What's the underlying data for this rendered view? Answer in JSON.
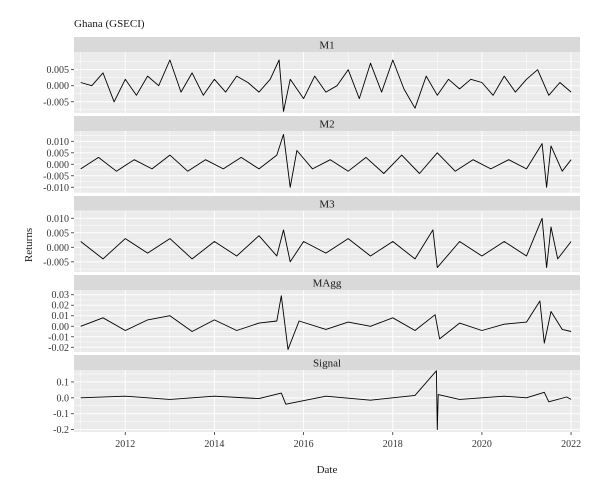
{
  "chart_data": {
    "type": "line",
    "title": "Ghana (GSECI)",
    "xlabel": "Date",
    "ylabel": "Returns",
    "xlim": [
      2010.85,
      2022.2
    ],
    "x_ticks": [
      2012,
      2014,
      2016,
      2018,
      2020,
      2022
    ],
    "grid": true,
    "legend": "none",
    "colors": {
      "panel_bg": "#ebebeb",
      "strip_bg": "#d9d9d9",
      "grid": "#ffffff",
      "line": "#000000"
    },
    "panels": [
      {
        "name": "M1",
        "ylim": [
          -0.0085,
          0.0105
        ],
        "y_ticks": [
          0.005,
          0.0,
          -0.005
        ],
        "y_tick_labels": [
          "0.005",
          "0.000",
          "-0.005"
        ],
        "x": [
          2011.0,
          2011.25,
          2011.5,
          2011.75,
          2012.0,
          2012.25,
          2012.5,
          2012.75,
          2013.0,
          2013.25,
          2013.5,
          2013.75,
          2014.0,
          2014.25,
          2014.5,
          2014.75,
          2015.0,
          2015.25,
          2015.45,
          2015.55,
          2015.7,
          2016.0,
          2016.25,
          2016.5,
          2016.75,
          2017.0,
          2017.25,
          2017.5,
          2017.75,
          2018.0,
          2018.25,
          2018.5,
          2018.75,
          2019.0,
          2019.25,
          2019.5,
          2019.75,
          2020.0,
          2020.25,
          2020.5,
          2020.75,
          2021.0,
          2021.25,
          2021.5,
          2021.75,
          2022.0
        ],
        "y": [
          0.001,
          0.0,
          0.004,
          -0.005,
          0.002,
          -0.003,
          0.003,
          0.0,
          0.008,
          -0.002,
          0.004,
          -0.003,
          0.002,
          -0.002,
          0.003,
          0.001,
          -0.002,
          0.002,
          0.008,
          -0.008,
          0.002,
          -0.004,
          0.003,
          -0.002,
          0.0,
          0.005,
          -0.004,
          0.007,
          -0.002,
          0.008,
          -0.001,
          -0.007,
          0.003,
          -0.003,
          0.002,
          -0.001,
          0.002,
          0.001,
          -0.003,
          0.003,
          -0.002,
          0.002,
          0.005,
          -0.003,
          0.001,
          -0.002
        ]
      },
      {
        "name": "M2",
        "ylim": [
          -0.0125,
          0.0145
        ],
        "y_ticks": [
          0.01,
          0.005,
          0.0,
          -0.005,
          -0.01
        ],
        "y_tick_labels": [
          "0.010",
          "0.005",
          "0.000",
          "-0.005",
          "-0.010"
        ],
        "x": [
          2011.0,
          2011.4,
          2011.8,
          2012.2,
          2012.6,
          2013.0,
          2013.4,
          2013.8,
          2014.2,
          2014.6,
          2015.0,
          2015.4,
          2015.55,
          2015.7,
          2015.85,
          2016.2,
          2016.6,
          2017.0,
          2017.4,
          2017.8,
          2018.2,
          2018.6,
          2019.0,
          2019.4,
          2019.8,
          2020.2,
          2020.6,
          2021.0,
          2021.35,
          2021.45,
          2021.55,
          2021.8,
          2022.0
        ],
        "y": [
          -0.002,
          0.003,
          -0.003,
          0.002,
          -0.002,
          0.004,
          -0.003,
          0.002,
          -0.002,
          0.003,
          -0.002,
          0.004,
          0.013,
          -0.01,
          0.006,
          -0.002,
          0.002,
          -0.003,
          0.003,
          -0.004,
          0.004,
          -0.004,
          0.005,
          -0.003,
          0.002,
          -0.002,
          0.002,
          -0.002,
          0.009,
          -0.01,
          0.008,
          -0.003,
          0.002
        ]
      },
      {
        "name": "M3",
        "ylim": [
          -0.0085,
          0.0125
        ],
        "y_ticks": [
          0.01,
          0.005,
          0.0,
          -0.005
        ],
        "y_tick_labels": [
          "0.010",
          "0.005",
          "0.000",
          "-0.005"
        ],
        "x": [
          2011.0,
          2011.5,
          2012.0,
          2012.5,
          2013.0,
          2013.5,
          2014.0,
          2014.5,
          2015.0,
          2015.4,
          2015.55,
          2015.7,
          2016.0,
          2016.5,
          2017.0,
          2017.5,
          2018.0,
          2018.5,
          2018.9,
          2019.0,
          2019.5,
          2020.0,
          2020.5,
          2021.0,
          2021.35,
          2021.45,
          2021.55,
          2021.7,
          2022.0
        ],
        "y": [
          0.002,
          -0.004,
          0.003,
          -0.002,
          0.003,
          -0.004,
          0.002,
          -0.003,
          0.004,
          -0.003,
          0.006,
          -0.005,
          0.002,
          -0.002,
          0.003,
          -0.003,
          0.002,
          -0.004,
          0.006,
          -0.007,
          0.002,
          -0.003,
          0.002,
          -0.003,
          0.01,
          -0.007,
          0.007,
          -0.004,
          0.002
        ]
      },
      {
        "name": "MAgg",
        "ylim": [
          -0.0245,
          0.0345
        ],
        "y_ticks": [
          0.03,
          0.02,
          0.01,
          0.0,
          -0.01,
          -0.02
        ],
        "y_tick_labels": [
          "0.03",
          "0.02",
          "0.01",
          "0.00",
          "-0.01",
          "-0.02"
        ],
        "x": [
          2011.0,
          2011.5,
          2012.0,
          2012.5,
          2013.0,
          2013.5,
          2014.0,
          2014.5,
          2015.0,
          2015.4,
          2015.5,
          2015.65,
          2015.9,
          2016.5,
          2017.0,
          2017.5,
          2018.0,
          2018.5,
          2018.95,
          2019.05,
          2019.5,
          2020.0,
          2020.5,
          2021.0,
          2021.3,
          2021.4,
          2021.55,
          2021.8,
          2022.0
        ],
        "y": [
          0.0,
          0.008,
          -0.004,
          0.006,
          0.01,
          -0.005,
          0.006,
          -0.004,
          0.003,
          0.005,
          0.029,
          -0.022,
          0.005,
          -0.003,
          0.004,
          0.0,
          0.008,
          -0.004,
          0.011,
          -0.012,
          0.003,
          -0.004,
          0.002,
          0.004,
          0.024,
          -0.016,
          0.014,
          -0.003,
          -0.005
        ]
      },
      {
        "name": "Signal",
        "ylim": [
          -0.215,
          0.175
        ],
        "y_ticks": [
          0.1,
          0.0,
          -0.1,
          -0.2
        ],
        "y_tick_labels": [
          "0.1",
          "0.0",
          "-0.1",
          "-0.2"
        ],
        "x": [
          2011.0,
          2012.0,
          2013.0,
          2014.0,
          2015.0,
          2015.5,
          2015.6,
          2016.5,
          2017.5,
          2018.5,
          2018.98,
          2019.0,
          2019.02,
          2019.5,
          2020.5,
          2021.0,
          2021.4,
          2021.5,
          2021.9,
          2022.0
        ],
        "y": [
          0.0,
          0.01,
          -0.01,
          0.01,
          -0.005,
          0.03,
          -0.04,
          0.01,
          -0.015,
          0.015,
          0.17,
          -0.2,
          0.02,
          -0.01,
          0.01,
          0.0,
          0.035,
          -0.025,
          0.005,
          -0.01
        ]
      }
    ]
  }
}
